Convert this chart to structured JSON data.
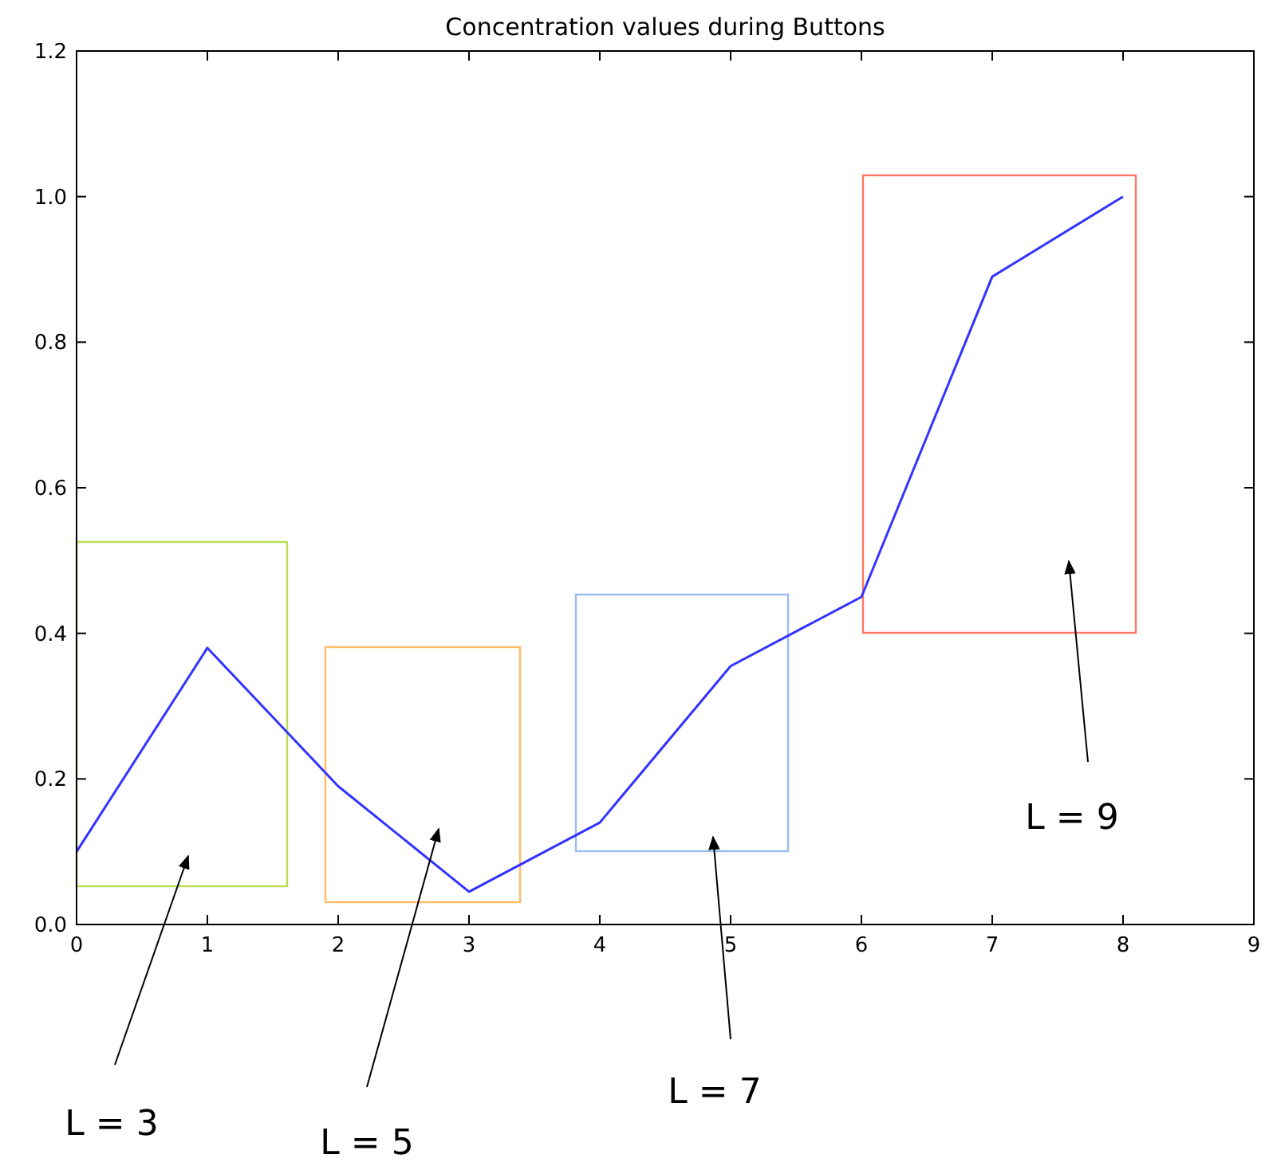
{
  "chart_data": {
    "type": "line",
    "title": "Concentration values during Buttons",
    "x": [
      0,
      1,
      2,
      3,
      4,
      5,
      6,
      7,
      8
    ],
    "series": [
      {
        "color": "#3333ff",
        "values": [
          0.1,
          0.38,
          0.19,
          0.045,
          0.14,
          0.355,
          0.45,
          0.89,
          1.0
        ]
      }
    ],
    "xlim": [
      0,
      9
    ],
    "xticks": [
      0,
      1,
      2,
      3,
      4,
      5,
      6,
      7,
      8,
      9
    ],
    "ylim": [
      0,
      1.2
    ],
    "yticks": [
      {
        "value": 0,
        "label": "0.0"
      },
      {
        "value": 0.2,
        "label": "0.2"
      },
      {
        "value": 0.4,
        "label": "0.4"
      },
      {
        "value": 0.6,
        "label": "0.6"
      },
      {
        "value": 0.8,
        "label": "0.8"
      },
      {
        "value": 1,
        "label": "1.0"
      },
      {
        "value": 1.2,
        "label": "1.2"
      }
    ],
    "annotations": [
      "L = 3",
      "L = 5",
      "L = 7",
      "L = 9"
    ],
    "grid": false,
    "marker": "none",
    "line_style": "solid"
  }
}
